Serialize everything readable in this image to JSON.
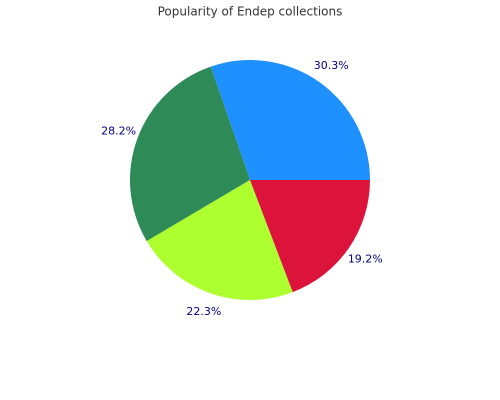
{
  "chart_data": {
    "type": "pie",
    "title": "Popularity of Endep collections",
    "values": [
      30.3,
      28.2,
      22.3,
      19.2
    ],
    "value_labels": [
      "30.3%",
      "28.2%",
      "22.3%",
      "19.2%"
    ],
    "colors": [
      "#1e90ff",
      "#2e8b57",
      "#adff2f",
      "#dc143c"
    ]
  }
}
